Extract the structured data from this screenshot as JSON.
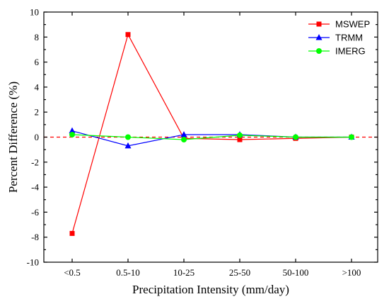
{
  "chart_data": {
    "type": "line",
    "title": "",
    "xlabel": "Precipitation Intensity (mm/day)",
    "ylabel": "Percent Difference (%)",
    "categories": [
      "<0.5",
      "0.5-10",
      "10-25",
      "25-50",
      "50-100",
      ">100"
    ],
    "ylim": [
      -10,
      10
    ],
    "yticks": [
      "-10",
      "-8",
      "-6",
      "-4",
      "-2",
      "0",
      "2",
      "4",
      "6",
      "8",
      "10"
    ],
    "grid": false,
    "legend_position": "top-right",
    "reference_line": {
      "value": 0,
      "style": "dashed",
      "color": "#ff0000"
    },
    "series": [
      {
        "name": "MSWEP",
        "color": "#ff0000",
        "marker": "square",
        "values": [
          -7.7,
          8.2,
          -0.1,
          -0.2,
          -0.1,
          0.0
        ]
      },
      {
        "name": "TRMM",
        "color": "#0000ff",
        "marker": "triangle",
        "values": [
          0.5,
          -0.7,
          0.2,
          0.2,
          0.0,
          0.0
        ]
      },
      {
        "name": "IMERG",
        "color": "#00ff00",
        "marker": "circle",
        "values": [
          0.2,
          0.0,
          -0.2,
          0.15,
          0.0,
          0.0
        ]
      }
    ]
  }
}
